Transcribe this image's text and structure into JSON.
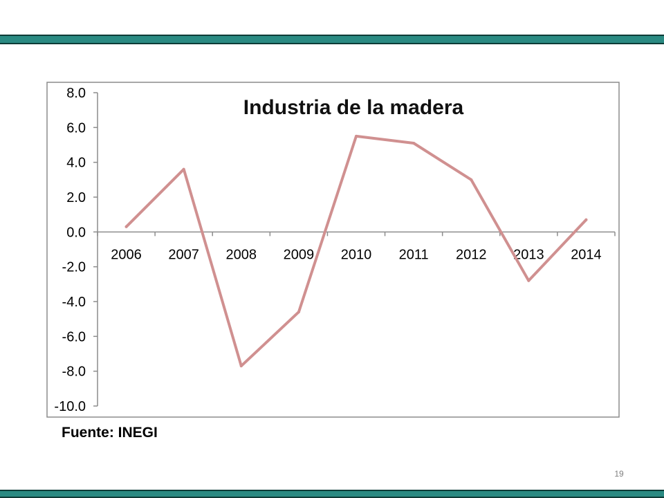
{
  "slide": {
    "source_label": "Fuente: INEGI",
    "page_number": "19",
    "band_color": "#2a8a82"
  },
  "chart_data": {
    "type": "line",
    "title": "Industria de la madera",
    "categories": [
      "2006",
      "2007",
      "2008",
      "2009",
      "2010",
      "2011",
      "2012",
      "2013",
      "2014"
    ],
    "series": [
      {
        "values": [
          0.3,
          3.6,
          -7.7,
          -4.6,
          5.5,
          5.1,
          3.0,
          -2.8,
          0.7
        ],
        "color": "#d09090"
      }
    ],
    "ylim": [
      -10.0,
      8.0
    ],
    "yticks": [
      "8.0",
      "6.0",
      "4.0",
      "2.0",
      "0.0",
      "-2.0",
      "-4.0",
      "-6.0",
      "-8.0",
      "-10.0"
    ],
    "xlabel": "",
    "ylabel": "",
    "grid": false,
    "legend": "none"
  }
}
